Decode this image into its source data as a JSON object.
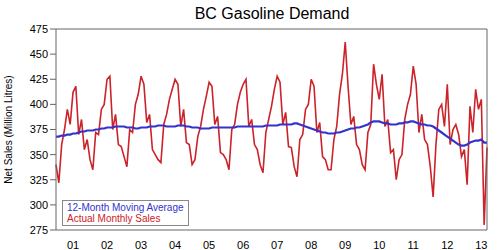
{
  "chart_data": {
    "type": "line",
    "title": "BC Gasoline Demand",
    "y_label": "Net Sales (Million Litres)",
    "categories": [
      null,
      null,
      null,
      null,
      null,
      null,
      "01",
      null,
      null,
      null,
      null,
      null,
      null,
      null,
      null,
      null,
      null,
      null,
      "02",
      null,
      null,
      null,
      null,
      null,
      null,
      null,
      null,
      null,
      null,
      null,
      "03",
      null,
      null,
      null,
      null,
      null,
      null,
      null,
      null,
      null,
      null,
      null,
      "04",
      null,
      null,
      null,
      null,
      null,
      null,
      null,
      null,
      null,
      null,
      null,
      "05",
      null,
      null,
      null,
      null,
      null,
      null,
      null,
      null,
      null,
      null,
      null,
      "06",
      null,
      null,
      null,
      null,
      null,
      null,
      null,
      null,
      null,
      null,
      null,
      "07",
      null,
      null,
      null,
      null,
      null,
      null,
      null,
      null,
      null,
      null,
      null,
      "08",
      null,
      null,
      null,
      null,
      null,
      null,
      null,
      null,
      null,
      null,
      null,
      "09",
      null,
      null,
      null,
      null,
      null,
      null,
      null,
      null,
      null,
      null,
      null,
      "10",
      null,
      null,
      null,
      null,
      null,
      null,
      null,
      null,
      null,
      null,
      null,
      "11",
      null,
      null,
      null,
      null,
      null,
      null,
      null,
      null,
      null,
      null,
      null,
      "12",
      null,
      null,
      null,
      null,
      null,
      null,
      null,
      null,
      null,
      null,
      null,
      "13",
      null,
      null
    ],
    "series": [
      {
        "name": "12-Month Moving Average",
        "color": "#3333cc",
        "values": [
          368,
          368,
          369,
          369,
          370,
          370,
          371,
          371,
          372,
          373,
          373,
          374,
          374,
          374,
          375,
          375,
          376,
          376,
          377,
          377,
          377,
          378,
          378,
          378,
          378,
          377,
          377,
          377,
          376,
          376,
          377,
          377,
          377,
          378,
          378,
          378,
          379,
          379,
          379,
          378,
          378,
          378,
          378,
          379,
          379,
          379,
          378,
          378,
          377,
          377,
          377,
          376,
          376,
          376,
          376,
          377,
          377,
          377,
          377,
          377,
          377,
          377,
          377,
          377,
          378,
          378,
          378,
          378,
          378,
          378,
          378,
          378,
          378,
          378,
          379,
          379,
          379,
          379,
          379,
          380,
          380,
          380,
          380,
          380,
          381,
          381,
          380,
          379,
          378,
          377,
          376,
          375,
          374,
          373,
          372,
          372,
          371,
          371,
          371,
          372,
          372,
          373,
          374,
          375,
          376,
          376,
          377,
          377,
          378,
          379,
          380,
          382,
          383,
          383,
          383,
          382,
          381,
          381,
          380,
          380,
          380,
          381,
          381,
          382,
          382,
          383,
          383,
          382,
          381,
          380,
          380,
          379,
          379,
          378,
          376,
          374,
          372,
          370,
          368,
          366,
          364,
          362,
          360,
          359,
          359,
          360,
          362,
          363,
          364,
          364,
          365,
          362,
          362
        ]
      },
      {
        "name": "Actual Monthly Sales",
        "color": "#cc2229",
        "values": [
          340,
          322,
          360,
          375,
          395,
          380,
          412,
          418,
          370,
          385,
          355,
          365,
          345,
          335,
          372,
          370,
          395,
          400,
          425,
          428,
          375,
          390,
          360,
          358,
          348,
          338,
          375,
          372,
          400,
          410,
          428,
          420,
          382,
          390,
          355,
          350,
          345,
          342,
          380,
          390,
          405,
          415,
          425,
          420,
          378,
          395,
          362,
          360,
          340,
          345,
          368,
          378,
          395,
          408,
          422,
          418,
          380,
          388,
          352,
          350,
          345,
          335,
          375,
          380,
          400,
          412,
          420,
          425,
          378,
          385,
          360,
          355,
          340,
          332,
          372,
          385,
          398,
          415,
          428,
          422,
          380,
          392,
          358,
          357,
          338,
          328,
          365,
          370,
          395,
          400,
          425,
          418,
          372,
          382,
          348,
          345,
          335,
          335,
          365,
          378,
          410,
          430,
          462,
          418,
          380,
          388,
          360,
          355,
          340,
          335,
          372,
          380,
          440,
          420,
          405,
          430,
          378,
          385,
          352,
          355,
          325,
          345,
          350,
          385,
          400,
          410,
          438,
          420,
          372,
          390,
          365,
          360,
          338,
          308,
          360,
          395,
          400,
          378,
          420,
          360,
          375,
          380,
          370,
          348,
          355,
          320,
          398,
          372,
          415,
          395,
          405,
          280,
          357
        ]
      }
    ],
    "ylim": [
      275,
      475
    ],
    "yticks": [
      275,
      300,
      325,
      350,
      375,
      400,
      425,
      450,
      475
    ],
    "grid": false,
    "legend": "lower left"
  }
}
